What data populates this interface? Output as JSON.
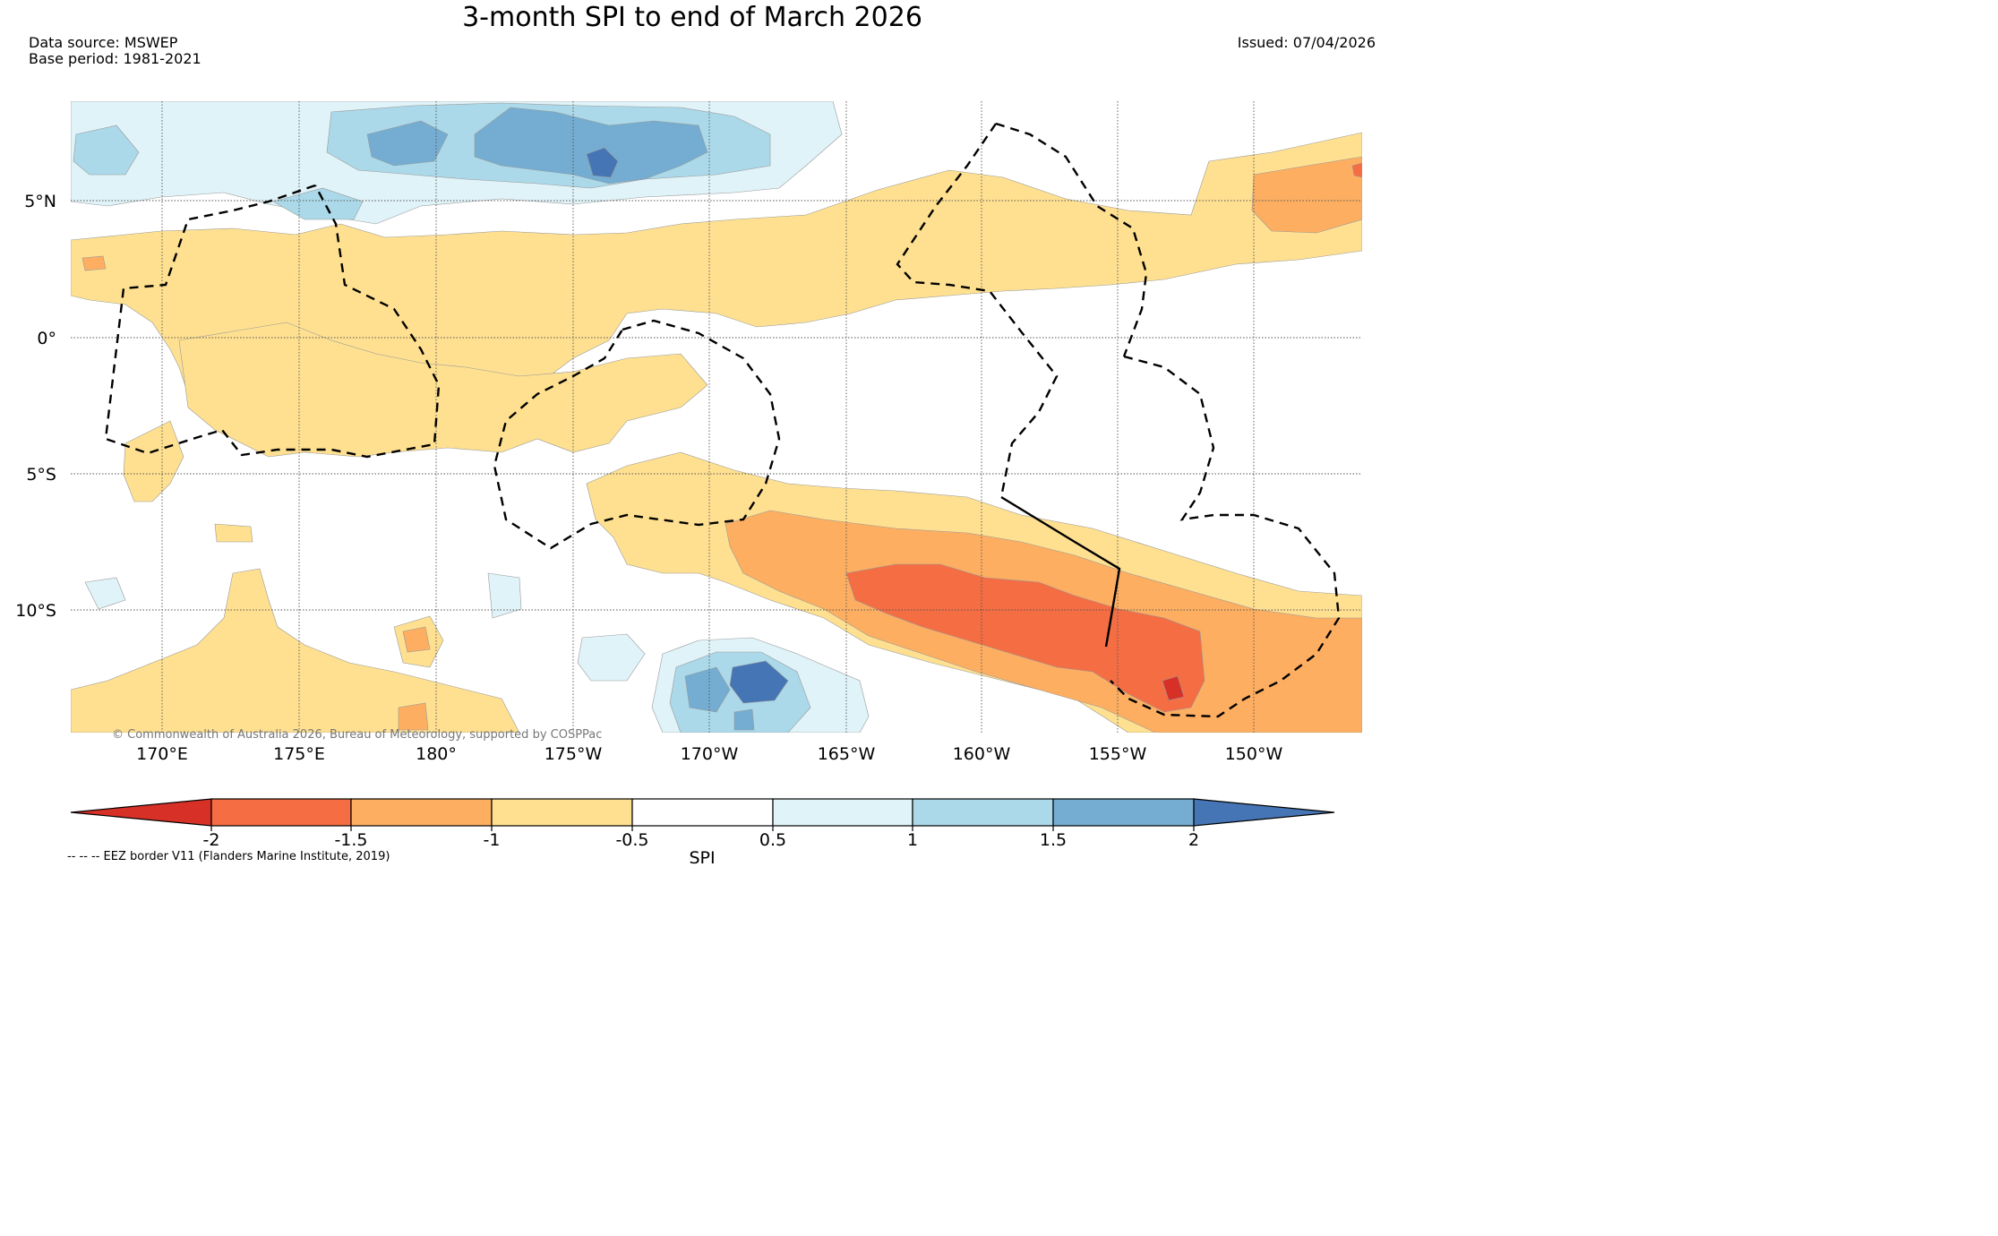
{
  "title": "3-month SPI to end of March 2026",
  "data_source": "Data source: MSWEP",
  "base_period": "Base period: 1981-2021",
  "issued": "Issued: 07/04/2026",
  "copyright": "© Commonwealth of Australia 2026, Bureau of Meteorology, supported by COSPPac",
  "lat_labels": [
    "5°N",
    "0°",
    "5°S",
    "10°S"
  ],
  "lon_labels": [
    "170°E",
    "175°E",
    "180°",
    "175°W",
    "170°W",
    "165°W",
    "160°W",
    "155°W",
    "150°W"
  ],
  "colorbar": {
    "label": "SPI",
    "ticks": [
      "-2",
      "-1.5",
      "-1",
      "-0.5",
      "0.5",
      "1",
      "1.5",
      "2"
    ],
    "colors": {
      "below_min": "#d73027",
      "c_m2_m15": "#f46d43",
      "c_m15_m1": "#fdae61",
      "c_m1_m05": "#fee090",
      "c_neutral": "#ffffff",
      "c_05_1": "#e0f3f8",
      "c_1_15": "#abd9e9",
      "c_15_2": "#74add1",
      "above_max": "#4575b4"
    }
  },
  "eez_note": "-- -- -- EEZ border V11 (Flanders Marine Institute, 2019)"
}
